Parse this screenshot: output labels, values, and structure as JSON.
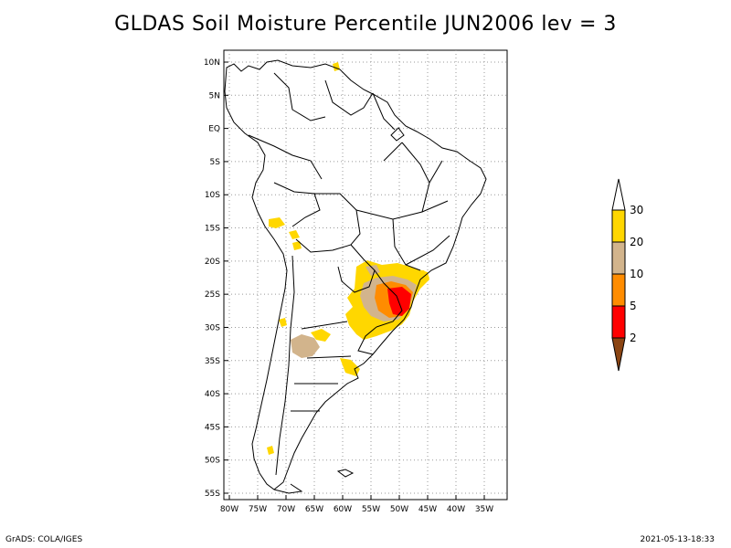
{
  "title": "GLDAS Soil Moisture Percentile JUN2006 lev = 3",
  "map": {
    "lon_range": [
      -80,
      -30
    ],
    "lat_range": [
      -55,
      12
    ],
    "lat_ticks": [
      "10N",
      "5N",
      "EQ",
      "5S",
      "10S",
      "15S",
      "20S",
      "25S",
      "30S",
      "35S",
      "40S",
      "45S",
      "50S",
      "55S"
    ],
    "lon_ticks": [
      "80W",
      "75W",
      "70W",
      "65W",
      "60W",
      "55W",
      "50W",
      "45W",
      "40W",
      "35W"
    ],
    "gridlines": "dotted"
  },
  "colorbar": {
    "labels": [
      "30",
      "20",
      "10",
      "5",
      "2"
    ],
    "colors": {
      "above_30": "#ffffff",
      "20_30": "#ffd700",
      "10_20": "#d2b48c",
      "5_10": "#ff8c00",
      "2_5": "#ff0000",
      "below_2": "#8b4513"
    }
  },
  "footer": {
    "left": "GrADS: COLA/IGES",
    "right": "2021-05-13-18:33"
  }
}
